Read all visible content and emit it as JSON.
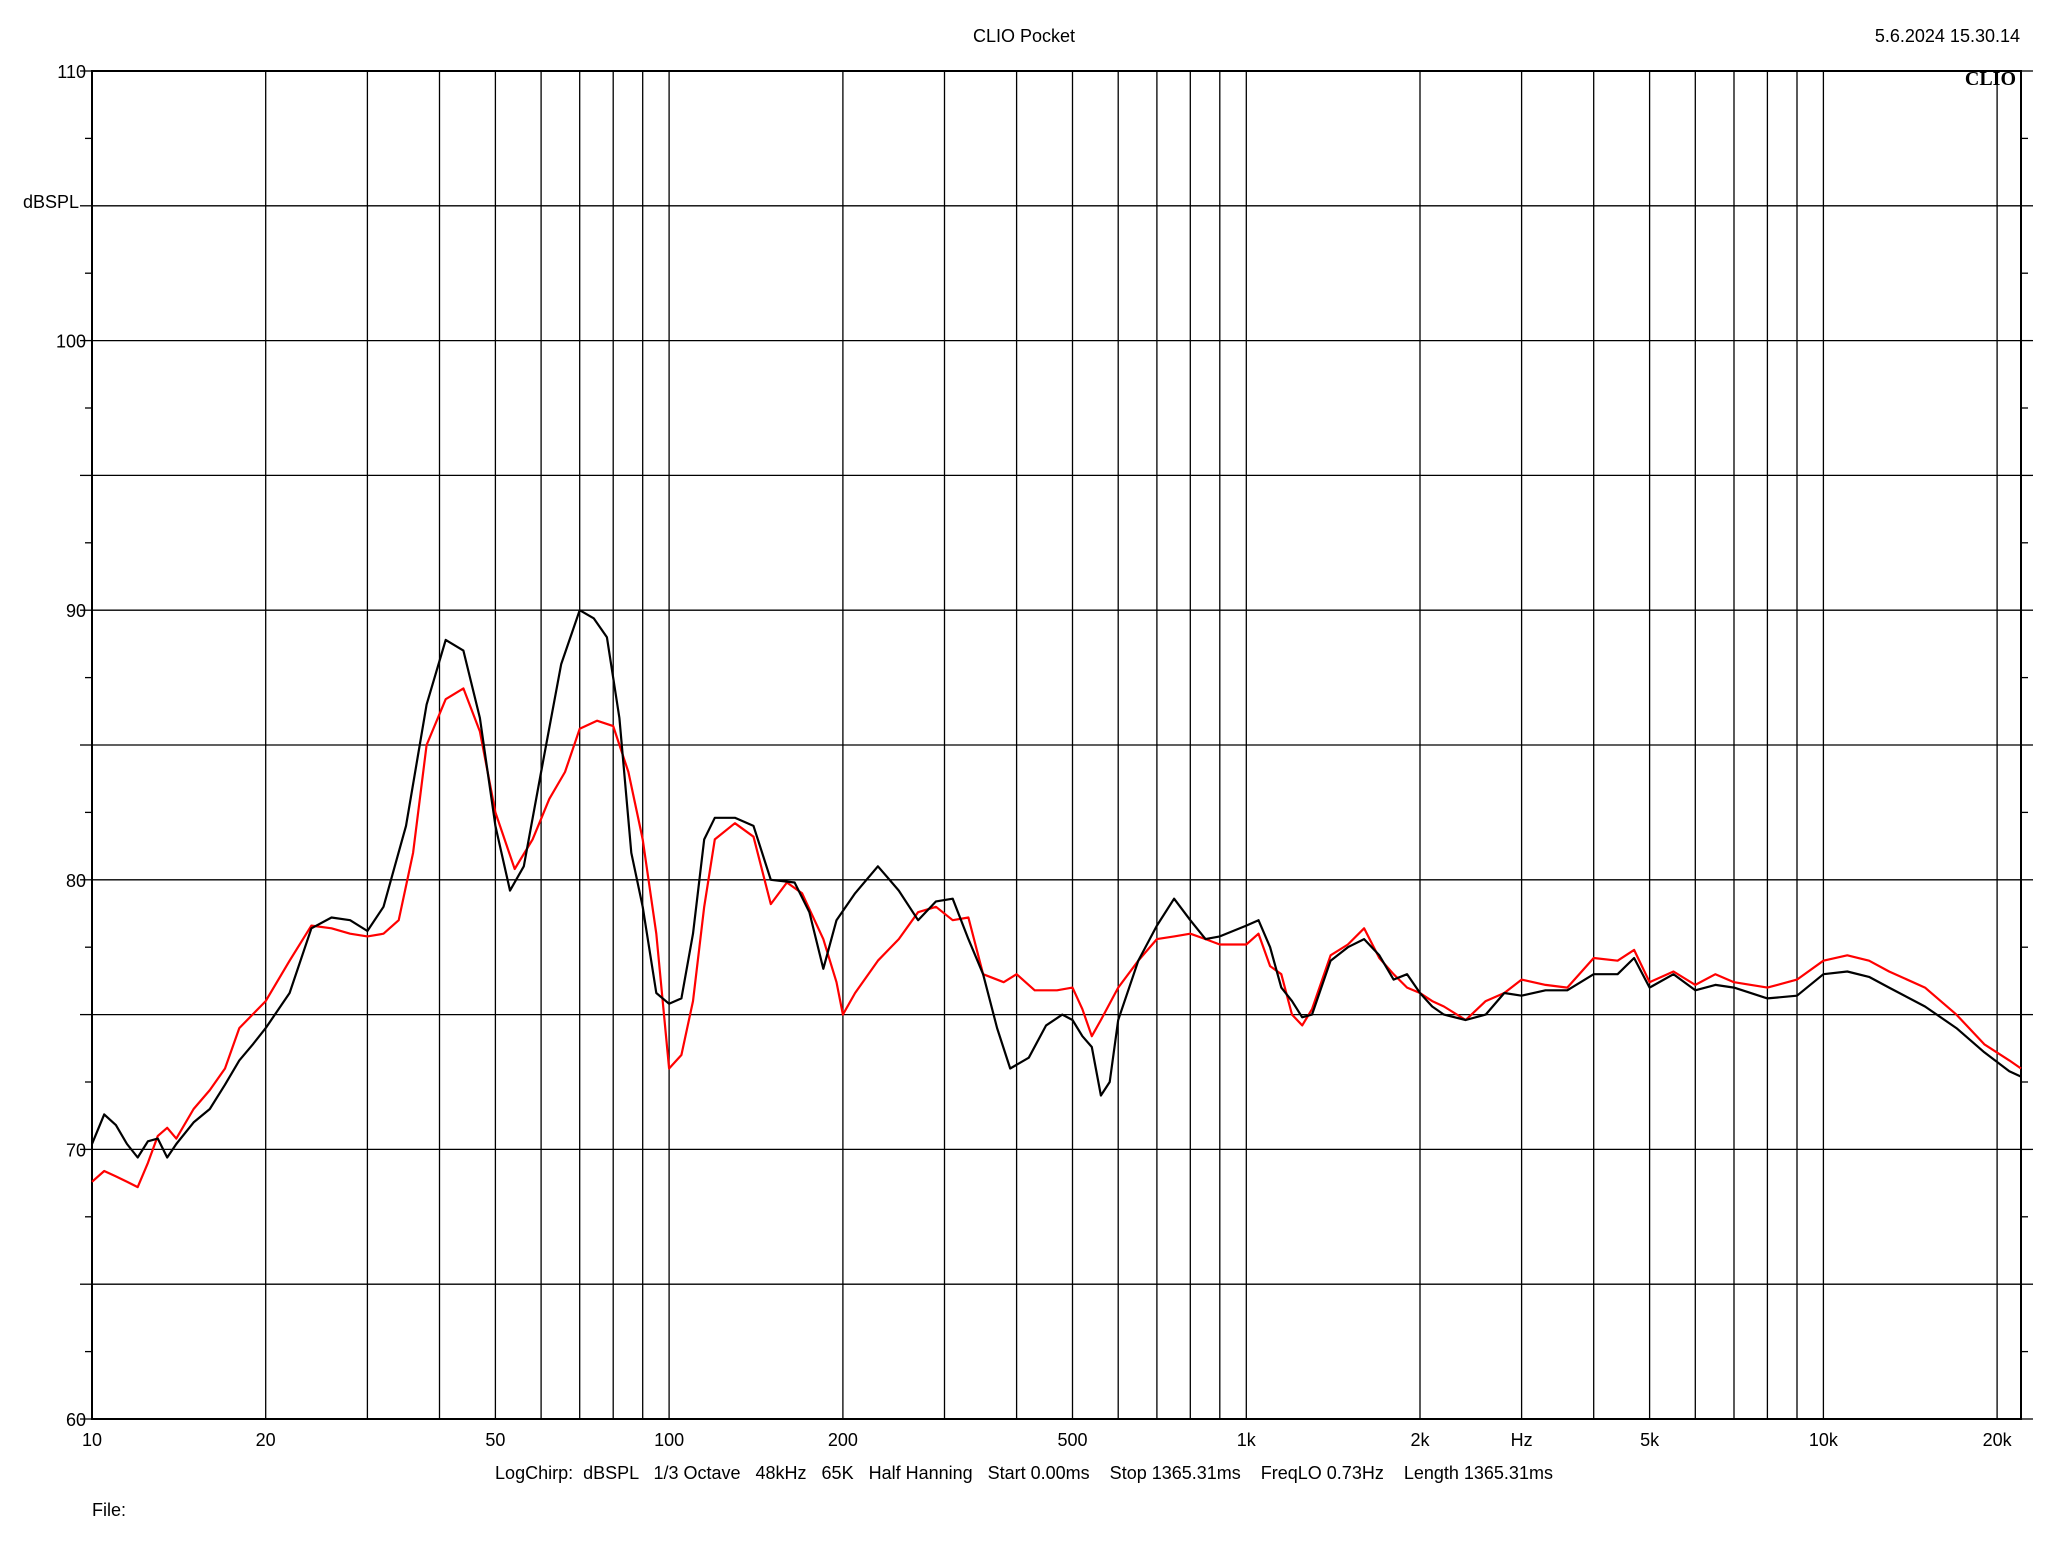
{
  "header": {
    "title": "CLIO Pocket",
    "timestamp": "5.6.2024 15.30.14",
    "brand": "CLIO"
  },
  "footer": {
    "settings": "LogChirp:  dBSPL   1/3 Octave   48kHz   65K   Half Hanning   Start 0.00ms    Stop 1365.31ms    FreqLO 0.73Hz    Length 1365.31ms",
    "file_label": "File:"
  },
  "chart_data": {
    "type": "line",
    "title": "CLIO Pocket",
    "xlabel": "Hz",
    "ylabel": "dBSPL",
    "xscale": "log",
    "xlim": [
      10,
      22000
    ],
    "ylim": [
      60,
      110
    ],
    "grid": true,
    "x_ticks": [
      {
        "value": 10,
        "label": "10"
      },
      {
        "value": 20,
        "label": "20"
      },
      {
        "value": 50,
        "label": "50"
      },
      {
        "value": 100,
        "label": "100"
      },
      {
        "value": 200,
        "label": "200"
      },
      {
        "value": 500,
        "label": "500"
      },
      {
        "value": 1000,
        "label": "1k"
      },
      {
        "value": 2000,
        "label": "2k"
      },
      {
        "value": 5000,
        "label": "5k"
      },
      {
        "value": 10000,
        "label": "10k"
      },
      {
        "value": 20000,
        "label": "20k"
      }
    ],
    "x_unit_label": {
      "value": 3000,
      "label": "Hz"
    },
    "y_ticks": [
      {
        "value": 60,
        "label": "60"
      },
      {
        "value": 70,
        "label": "70"
      },
      {
        "value": 80,
        "label": "80"
      },
      {
        "value": 90,
        "label": "90"
      },
      {
        "value": 100,
        "label": "100"
      },
      {
        "value": 110,
        "label": "110"
      }
    ],
    "series": [
      {
        "color": "#000000",
        "points": [
          [
            10,
            70.2
          ],
          [
            10.5,
            71.3
          ],
          [
            11,
            70.9
          ],
          [
            11.5,
            70.2
          ],
          [
            12,
            69.7
          ],
          [
            12.5,
            70.3
          ],
          [
            13,
            70.4
          ],
          [
            13.5,
            69.7
          ],
          [
            14,
            70.2
          ],
          [
            15,
            71.0
          ],
          [
            16,
            71.5
          ],
          [
            17,
            72.4
          ],
          [
            18,
            73.3
          ],
          [
            19,
            73.9
          ],
          [
            20,
            74.5
          ],
          [
            22,
            75.8
          ],
          [
            24,
            78.2
          ],
          [
            26,
            78.6
          ],
          [
            28,
            78.5
          ],
          [
            30,
            78.1
          ],
          [
            32,
            79.0
          ],
          [
            35,
            82.0
          ],
          [
            38,
            86.5
          ],
          [
            41,
            88.9
          ],
          [
            44,
            88.5
          ],
          [
            47,
            86.0
          ],
          [
            50,
            82.0
          ],
          [
            53,
            79.6
          ],
          [
            56,
            80.5
          ],
          [
            60,
            84.0
          ],
          [
            65,
            88.0
          ],
          [
            70,
            90.0
          ],
          [
            74,
            89.7
          ],
          [
            78,
            89.0
          ],
          [
            82,
            86.0
          ],
          [
            86,
            81.0
          ],
          [
            90,
            79.0
          ],
          [
            95,
            75.8
          ],
          [
            100,
            75.4
          ],
          [
            105,
            75.6
          ],
          [
            110,
            78.0
          ],
          [
            115,
            81.5
          ],
          [
            120,
            82.3
          ],
          [
            130,
            82.3
          ],
          [
            140,
            82.0
          ],
          [
            150,
            80.0
          ],
          [
            165,
            79.9
          ],
          [
            175,
            78.8
          ],
          [
            185,
            76.7
          ],
          [
            195,
            78.5
          ],
          [
            210,
            79.5
          ],
          [
            230,
            80.5
          ],
          [
            250,
            79.6
          ],
          [
            270,
            78.5
          ],
          [
            290,
            79.2
          ],
          [
            310,
            79.3
          ],
          [
            330,
            77.8
          ],
          [
            350,
            76.5
          ],
          [
            370,
            74.5
          ],
          [
            390,
            73.0
          ],
          [
            420,
            73.4
          ],
          [
            450,
            74.6
          ],
          [
            480,
            75.0
          ],
          [
            500,
            74.8
          ],
          [
            520,
            74.2
          ],
          [
            540,
            73.8
          ],
          [
            560,
            72.0
          ],
          [
            580,
            72.5
          ],
          [
            600,
            74.8
          ],
          [
            650,
            77.0
          ],
          [
            700,
            78.3
          ],
          [
            750,
            79.3
          ],
          [
            800,
            78.5
          ],
          [
            850,
            77.8
          ],
          [
            900,
            77.9
          ],
          [
            1000,
            78.3
          ],
          [
            1050,
            78.5
          ],
          [
            1100,
            77.5
          ],
          [
            1150,
            76.0
          ],
          [
            1200,
            75.5
          ],
          [
            1250,
            74.9
          ],
          [
            1300,
            75.0
          ],
          [
            1400,
            77.0
          ],
          [
            1500,
            77.5
          ],
          [
            1600,
            77.8
          ],
          [
            1700,
            77.2
          ],
          [
            1800,
            76.3
          ],
          [
            1900,
            76.5
          ],
          [
            2000,
            75.8
          ],
          [
            2100,
            75.3
          ],
          [
            2200,
            75.0
          ],
          [
            2400,
            74.8
          ],
          [
            2600,
            75.0
          ],
          [
            2800,
            75.8
          ],
          [
            3000,
            75.7
          ],
          [
            3300,
            75.9
          ],
          [
            3600,
            75.9
          ],
          [
            4000,
            76.5
          ],
          [
            4400,
            76.5
          ],
          [
            4700,
            77.1
          ],
          [
            5000,
            76.0
          ],
          [
            5500,
            76.5
          ],
          [
            6000,
            75.9
          ],
          [
            6500,
            76.1
          ],
          [
            7000,
            76.0
          ],
          [
            8000,
            75.6
          ],
          [
            9000,
            75.7
          ],
          [
            10000,
            76.5
          ],
          [
            11000,
            76.6
          ],
          [
            12000,
            76.4
          ],
          [
            13000,
            76.0
          ],
          [
            15000,
            75.3
          ],
          [
            17000,
            74.5
          ],
          [
            19000,
            73.6
          ],
          [
            21000,
            72.9
          ],
          [
            22000,
            72.7
          ]
        ]
      },
      {
        "color": "#ff0000",
        "points": [
          [
            10,
            68.8
          ],
          [
            10.5,
            69.2
          ],
          [
            11,
            69.0
          ],
          [
            11.5,
            68.8
          ],
          [
            12,
            68.6
          ],
          [
            12.5,
            69.5
          ],
          [
            13,
            70.5
          ],
          [
            13.5,
            70.8
          ],
          [
            14,
            70.4
          ],
          [
            15,
            71.5
          ],
          [
            16,
            72.2
          ],
          [
            17,
            73.0
          ],
          [
            18,
            74.5
          ],
          [
            20,
            75.5
          ],
          [
            22,
            77.0
          ],
          [
            24,
            78.3
          ],
          [
            26,
            78.2
          ],
          [
            28,
            78.0
          ],
          [
            30,
            77.9
          ],
          [
            32,
            78.0
          ],
          [
            34,
            78.5
          ],
          [
            36,
            81.0
          ],
          [
            38,
            85.0
          ],
          [
            41,
            86.7
          ],
          [
            44,
            87.1
          ],
          [
            47,
            85.5
          ],
          [
            50,
            82.5
          ],
          [
            54,
            80.4
          ],
          [
            58,
            81.5
          ],
          [
            62,
            83.0
          ],
          [
            66,
            84.0
          ],
          [
            70,
            85.6
          ],
          [
            75,
            85.9
          ],
          [
            80,
            85.7
          ],
          [
            85,
            84.0
          ],
          [
            90,
            81.5
          ],
          [
            95,
            78.0
          ],
          [
            100,
            73.0
          ],
          [
            105,
            73.5
          ],
          [
            110,
            75.5
          ],
          [
            115,
            79.0
          ],
          [
            120,
            81.5
          ],
          [
            130,
            82.1
          ],
          [
            140,
            81.6
          ],
          [
            150,
            79.1
          ],
          [
            160,
            79.9
          ],
          [
            170,
            79.5
          ],
          [
            185,
            77.8
          ],
          [
            195,
            76.2
          ],
          [
            200,
            75.0
          ],
          [
            210,
            75.8
          ],
          [
            230,
            77.0
          ],
          [
            250,
            77.8
          ],
          [
            270,
            78.8
          ],
          [
            290,
            79.0
          ],
          [
            310,
            78.5
          ],
          [
            330,
            78.6
          ],
          [
            350,
            76.5
          ],
          [
            380,
            76.2
          ],
          [
            400,
            76.5
          ],
          [
            430,
            75.9
          ],
          [
            470,
            75.9
          ],
          [
            500,
            76.0
          ],
          [
            520,
            75.2
          ],
          [
            540,
            74.2
          ],
          [
            560,
            74.8
          ],
          [
            600,
            76.0
          ],
          [
            650,
            77.0
          ],
          [
            700,
            77.8
          ],
          [
            750,
            77.9
          ],
          [
            800,
            78.0
          ],
          [
            850,
            77.8
          ],
          [
            900,
            77.6
          ],
          [
            1000,
            77.6
          ],
          [
            1050,
            78.0
          ],
          [
            1100,
            76.8
          ],
          [
            1150,
            76.5
          ],
          [
            1200,
            75.0
          ],
          [
            1250,
            74.6
          ],
          [
            1300,
            75.2
          ],
          [
            1400,
            77.2
          ],
          [
            1500,
            77.6
          ],
          [
            1600,
            78.2
          ],
          [
            1700,
            77.1
          ],
          [
            1800,
            76.5
          ],
          [
            1900,
            76.0
          ],
          [
            2000,
            75.8
          ],
          [
            2100,
            75.5
          ],
          [
            2200,
            75.3
          ],
          [
            2400,
            74.8
          ],
          [
            2600,
            75.5
          ],
          [
            2800,
            75.8
          ],
          [
            3000,
            76.3
          ],
          [
            3300,
            76.1
          ],
          [
            3600,
            76.0
          ],
          [
            4000,
            77.1
          ],
          [
            4400,
            77.0
          ],
          [
            4700,
            77.4
          ],
          [
            5000,
            76.2
          ],
          [
            5500,
            76.6
          ],
          [
            6000,
            76.1
          ],
          [
            6500,
            76.5
          ],
          [
            7000,
            76.2
          ],
          [
            8000,
            76.0
          ],
          [
            9000,
            76.3
          ],
          [
            10000,
            77.0
          ],
          [
            11000,
            77.2
          ],
          [
            12000,
            77.0
          ],
          [
            13000,
            76.6
          ],
          [
            15000,
            76.0
          ],
          [
            17000,
            75.0
          ],
          [
            19000,
            73.9
          ],
          [
            21000,
            73.3
          ],
          [
            22000,
            73.0
          ]
        ]
      }
    ]
  }
}
